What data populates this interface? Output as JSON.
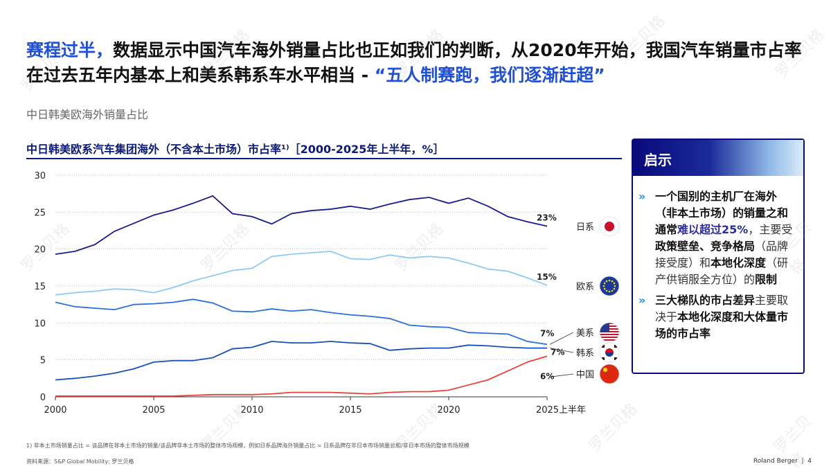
{
  "title": {
    "highlight1": "赛程过半，",
    "main": "数据显示中国汽车海外销量占比也正如我们的判断，从2020年开始，我国汽车销量市占率在过去五年内基本上和美系韩系车水平相当 - ",
    "highlight2": "“五人制赛跑，我们逐渐赶超”"
  },
  "subtitle": "中日韩美欧海外销量占比",
  "panel": {
    "header": "启示",
    "bullet1": {
      "p1": "一个国别的主机厂在海外（非本土市场）的销量之和通常",
      "p2": "难以超过25%",
      "p3": "，主要受",
      "p4": "政策壁垒、竞争格局",
      "p5": "（品牌接受度）和",
      "p6": "本地化深度",
      "p7": "（研产供销服全方位）的",
      "p8": "限制"
    },
    "bullet2": {
      "p1": "三大梯队的市占差异",
      "p2": "主要取决于",
      "p3": "本地化深度和大体量市场的市占率"
    },
    "bullet_icon": "double-chevron-right-icon"
  },
  "footnote": "1) 非本土市场销量占比 = 该品牌在非本土市场的销量/该品牌非本土市场的整体市场规模，例如日系品牌海外销量占比 = 日系品牌在非日本市场销量总和/非日本市场的整体市场规模",
  "source": "资料来源：S&P Global Mobility; 罗兰贝格",
  "brand": "Roland Berger",
  "page": "4",
  "watermark": "罗兰贝格",
  "chart_data": {
    "type": "line",
    "title": "中日韩美欧系汽车集团海外（不含本土市场）市占率¹⁾［2000-2025年上半年，%］",
    "x": [
      2000,
      2001,
      2002,
      2003,
      2004,
      2005,
      2006,
      2007,
      2008,
      2009,
      2010,
      2011,
      2012,
      2013,
      2014,
      2015,
      2016,
      2017,
      2018,
      2019,
      2020,
      2021,
      2022,
      2023,
      2024,
      2025
    ],
    "xticks": [
      2000,
      2005,
      2010,
      2015,
      2020,
      2025
    ],
    "xtick_labels": [
      "2000",
      "2005",
      "2010",
      "2015",
      "2020",
      "2025上半年"
    ],
    "yticks": [
      0,
      5,
      10,
      15,
      20,
      25,
      30
    ],
    "ylim": [
      0,
      30
    ],
    "grid": "horizontal dotted",
    "series": [
      {
        "name": "日系",
        "color": "#1a1a8c",
        "end_label": "23%",
        "flag": "japan",
        "values": [
          19.3,
          19.7,
          20.6,
          22.4,
          23.5,
          24.6,
          25.3,
          26.2,
          27.2,
          24.8,
          24.4,
          23.4,
          24.8,
          25.2,
          25.4,
          25.8,
          25.4,
          26.1,
          26.7,
          27.0,
          26.2,
          26.9,
          25.8,
          24.4,
          23.7,
          23.1
        ]
      },
      {
        "name": "欧系",
        "color": "#8ccaf0",
        "end_label": "15%",
        "flag": "eu",
        "values": [
          13.8,
          14.1,
          14.3,
          14.6,
          14.5,
          14.1,
          14.8,
          15.7,
          16.4,
          17.1,
          17.4,
          19.0,
          19.3,
          19.5,
          19.7,
          18.7,
          18.6,
          19.2,
          18.8,
          19.0,
          18.8,
          18.1,
          17.3,
          17.0,
          16.1,
          15.1
        ]
      },
      {
        "name": "美系",
        "color": "#2a6fd6",
        "end_label": "7%",
        "flag": "us",
        "values": [
          12.8,
          12.2,
          12.0,
          11.8,
          12.5,
          12.6,
          12.8,
          13.2,
          12.7,
          11.6,
          11.5,
          11.9,
          11.6,
          11.8,
          11.4,
          11.1,
          10.9,
          10.6,
          9.7,
          9.5,
          9.4,
          8.7,
          8.6,
          8.5,
          7.5,
          7.1
        ]
      },
      {
        "name": "韩系",
        "color": "#1450b4",
        "end_label": "7%",
        "flag": "korea",
        "values": [
          2.3,
          2.5,
          2.8,
          3.2,
          3.8,
          4.7,
          4.9,
          4.9,
          5.3,
          6.5,
          6.7,
          7.5,
          7.3,
          7.3,
          7.5,
          7.3,
          7.2,
          6.3,
          6.5,
          6.6,
          6.6,
          7.0,
          6.9,
          6.7,
          6.6,
          6.6
        ]
      },
      {
        "name": "中国",
        "color": "#e8403a",
        "end_label": "6%",
        "flag": "china",
        "values": [
          0.1,
          0.1,
          0.1,
          0.1,
          0.1,
          0.1,
          0.1,
          0.2,
          0.3,
          0.3,
          0.3,
          0.4,
          0.6,
          0.6,
          0.6,
          0.5,
          0.4,
          0.6,
          0.7,
          0.7,
          0.9,
          1.6,
          2.3,
          3.5,
          4.7,
          5.5
        ]
      }
    ]
  }
}
